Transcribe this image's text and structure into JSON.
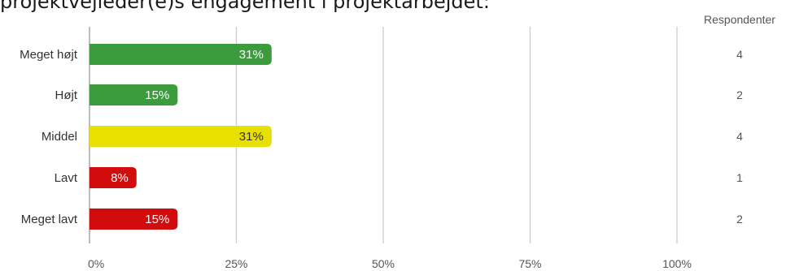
{
  "title": "projektvejleder(e)s engagement i projektarbejdet:",
  "respondents_header": "Respondenter",
  "chart_data": {
    "type": "bar",
    "orientation": "horizontal",
    "title": "projektvejleder(e)s engagement i projektarbejdet:",
    "categories": [
      "Meget højt",
      "Højt",
      "Middel",
      "Lavt",
      "Meget lavt"
    ],
    "values": [
      31,
      15,
      31,
      8,
      15
    ],
    "value_labels": [
      "31%",
      "15%",
      "31%",
      "8%",
      "15%"
    ],
    "respondents": [
      4,
      2,
      4,
      1,
      2
    ],
    "bar_colors": [
      "#3c9b3c",
      "#3c9b3c",
      "#e8e000",
      "#d20c0c",
      "#d20c0c"
    ],
    "label_colors": [
      "#ffffff",
      "#ffffff",
      "#333333",
      "#ffffff",
      "#ffffff"
    ],
    "xlim": [
      0,
      100
    ],
    "xticks": [
      0,
      25,
      50,
      75,
      100
    ],
    "xtick_labels": [
      "0%",
      "25%",
      "50%",
      "75%",
      "100%"
    ],
    "grid": true,
    "gridline_color": "#cccccc"
  }
}
